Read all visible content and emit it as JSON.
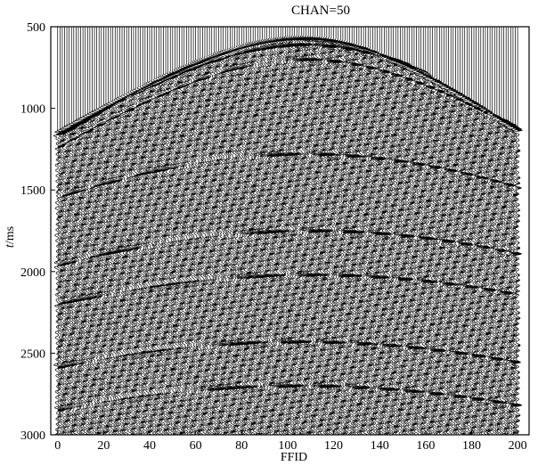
{
  "chart_data": {
    "type": "seismic-wiggle",
    "title": "CHAN=50",
    "xlabel": "FFID",
    "ylabel_prefix": "t",
    "ylabel_suffix": "/ms",
    "xlim": [
      -3,
      205
    ],
    "ylim": [
      3000,
      500
    ],
    "x_ticks": [
      0,
      20,
      40,
      60,
      80,
      100,
      120,
      140,
      160,
      180,
      200
    ],
    "y_ticks": [
      500,
      1000,
      1500,
      2000,
      2500,
      3000
    ],
    "trace_count": 201,
    "first_break": {
      "apex_ffid": 107,
      "apex_time_ms": 565,
      "time_at_ffid_0_ms": 1150,
      "time_at_ffid_200_ms": 1130
    },
    "reflections": [
      {
        "apex_ffid": 107,
        "apex_time_ms": 610,
        "edge_time_ms": 1180
      },
      {
        "apex_ffid": 107,
        "apex_time_ms": 700,
        "edge_time_ms": 1260
      },
      {
        "apex_ffid": 107,
        "apex_time_ms": 1280,
        "edge_time_ms": 1560
      },
      {
        "apex_ffid": 110,
        "apex_time_ms": 1750,
        "edge_time_ms": 1960
      },
      {
        "apex_ffid": 110,
        "apex_time_ms": 2020,
        "edge_time_ms": 2200
      },
      {
        "apex_ffid": 105,
        "apex_time_ms": 2430,
        "edge_time_ms": 2600
      },
      {
        "apex_ffid": 105,
        "apex_time_ms": 2700,
        "edge_time_ms": 2860
      }
    ]
  }
}
